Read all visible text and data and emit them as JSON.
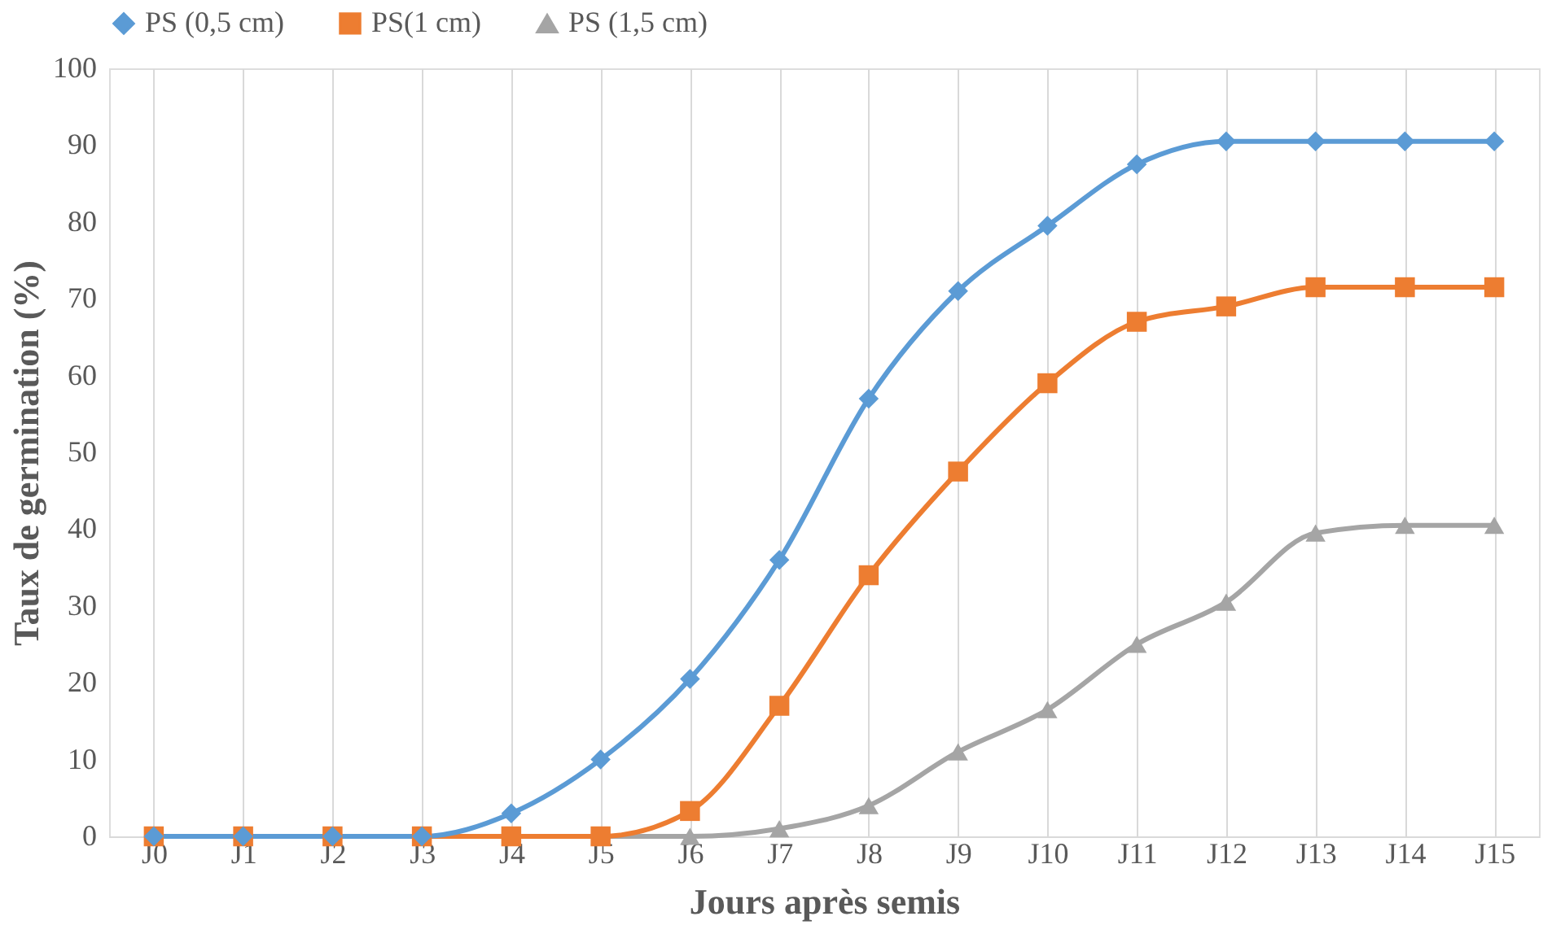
{
  "chart_data": {
    "type": "line",
    "xlabel": "Jours après semis",
    "ylabel": "Taux de germination (%)",
    "categories": [
      "J0",
      "J1",
      "J2",
      "J3",
      "J4",
      "J5",
      "J6",
      "J7",
      "J8",
      "J9",
      "J10",
      "J11",
      "J12",
      "J13",
      "J14",
      "J15"
    ],
    "ylim": [
      0,
      100
    ],
    "yticks": [
      0,
      10,
      20,
      30,
      40,
      50,
      60,
      70,
      80,
      90,
      100
    ],
    "grid": "x",
    "legend": "top",
    "series": [
      {
        "name": "PS (0,5 cm)",
        "color": "#5b9bd5",
        "marker": "diamond",
        "values": [
          0,
          0,
          0,
          0,
          3,
          10,
          20.5,
          36,
          57,
          71,
          79.5,
          87.5,
          90.5,
          90.5,
          90.5,
          90.5
        ]
      },
      {
        "name": "PS(1 cm)",
        "color": "#ed7d31",
        "marker": "square",
        "values": [
          0,
          0,
          0,
          0,
          0,
          0,
          3.3,
          17,
          34,
          47.5,
          59,
          67,
          69,
          71.5,
          71.5,
          71.5
        ]
      },
      {
        "name": "PS (1,5 cm)",
        "color": "#a5a5a5",
        "marker": "triangle",
        "values": [
          0,
          0,
          0,
          0,
          0,
          0,
          0,
          1,
          4,
          11,
          16.5,
          25,
          30.5,
          39.5,
          40.5,
          40.5
        ]
      }
    ]
  }
}
